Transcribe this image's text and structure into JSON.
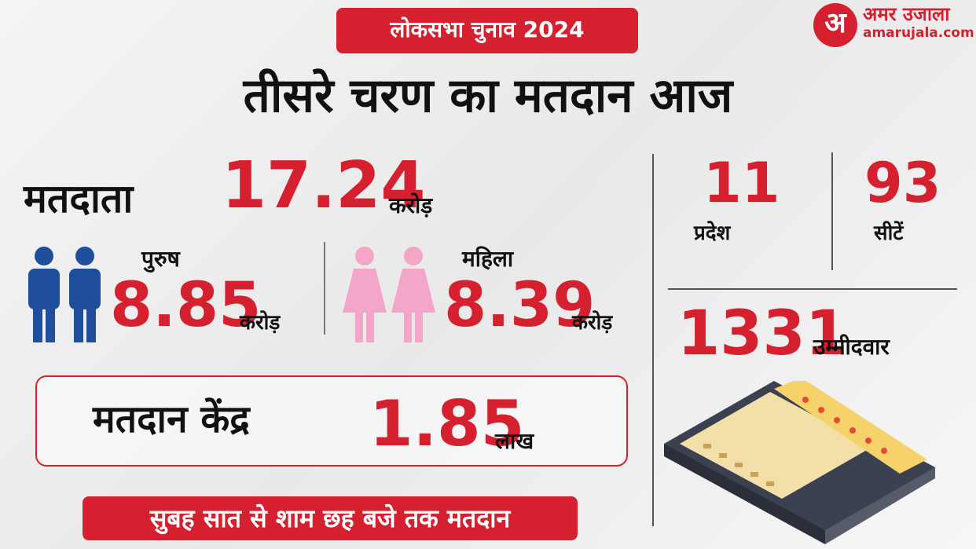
{
  "header": {
    "badge": "लोकसभा चुनाव 2024",
    "title": "तीसरे चरण का मतदान आज",
    "logo": {
      "mark": "अ",
      "name": "अमर उजाला",
      "site": "amarujala.com"
    }
  },
  "voters": {
    "label": "मतदाता",
    "value": 17.24,
    "unit": "करोड़"
  },
  "male": {
    "label": "पुरुष",
    "value": 8.85,
    "unit": "करोड़"
  },
  "female": {
    "label": "महिला",
    "value": 8.39,
    "unit": "करोड़"
  },
  "polling_stations": {
    "label": "मतदान केंद्र",
    "value": 1.85,
    "unit": "लाख"
  },
  "timing": "सुबह सात से शाम छह बजे तक मतदान",
  "states": {
    "value": 11,
    "label": "प्रदेश"
  },
  "seats": {
    "value": 93,
    "label": "सीटें"
  },
  "candidates": {
    "value": 1331,
    "label": "उम्मीदवार"
  }
}
